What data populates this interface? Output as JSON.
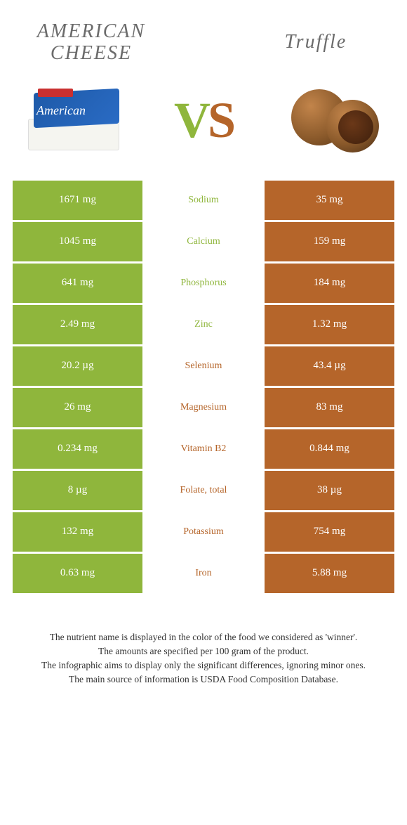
{
  "header": {
    "left_title": "AMERICAN CHEESE",
    "right_title": "Truffle",
    "cheese_text": "American"
  },
  "vs": {
    "v": "V",
    "s": "S"
  },
  "colors": {
    "green": "#8fb63c",
    "brown": "#b5652a",
    "white": "#ffffff"
  },
  "rows": [
    {
      "left": "1671 mg",
      "mid": "Sodium",
      "right": "35 mg",
      "winner": "left"
    },
    {
      "left": "1045 mg",
      "mid": "Calcium",
      "right": "159 mg",
      "winner": "left"
    },
    {
      "left": "641 mg",
      "mid": "Phosphorus",
      "right": "184 mg",
      "winner": "left"
    },
    {
      "left": "2.49 mg",
      "mid": "Zinc",
      "right": "1.32 mg",
      "winner": "left"
    },
    {
      "left": "20.2 µg",
      "mid": "Selenium",
      "right": "43.4 µg",
      "winner": "right"
    },
    {
      "left": "26 mg",
      "mid": "Magnesium",
      "right": "83 mg",
      "winner": "right"
    },
    {
      "left": "0.234 mg",
      "mid": "Vitamin B2",
      "right": "0.844 mg",
      "winner": "right"
    },
    {
      "left": "8 µg",
      "mid": "Folate, total",
      "right": "38 µg",
      "winner": "right"
    },
    {
      "left": "132 mg",
      "mid": "Potassium",
      "right": "754 mg",
      "winner": "right"
    },
    {
      "left": "0.63 mg",
      "mid": "Iron",
      "right": "5.88 mg",
      "winner": "right"
    }
  ],
  "footer": {
    "line1": "The nutrient name is displayed in the color of the food we considered as 'winner'.",
    "line2": "The amounts are specified per 100 gram of the product.",
    "line3": "The infographic aims to display only the significant differences, ignoring minor ones.",
    "line4": "The main source of information is USDA Food Composition Database."
  }
}
